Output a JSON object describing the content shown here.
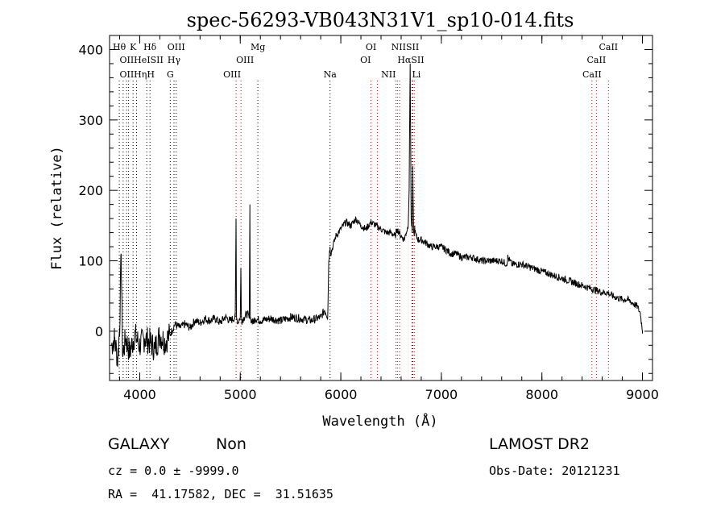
{
  "chart_data": {
    "type": "line",
    "title": "spec-56293-VB043N31V1_sp10-014.fits",
    "xlabel": "Wavelength (Å)",
    "ylabel": "Flux (relative)",
    "xlim": [
      3700,
      9100
    ],
    "ylim": [
      -70,
      420
    ],
    "xticks": [
      4000,
      5000,
      6000,
      7000,
      8000,
      9000
    ],
    "yticks": [
      0,
      100,
      200,
      300,
      400
    ],
    "grid": false,
    "line_color": "#000000",
    "marker_color": "#cc0000",
    "series": [
      {
        "x": [
          3720,
          3750,
          3780,
          3800,
          3815,
          3830,
          3860,
          3900,
          3950,
          4000,
          4050,
          4100,
          4150,
          4200,
          4250,
          4300,
          4350,
          4400,
          4450,
          4500,
          4550,
          4600,
          4650,
          4700,
          4750,
          4800,
          4850,
          4900,
          4950,
          4958,
          4962,
          4966,
          4975,
          5000,
          5006,
          5010,
          5015,
          5040,
          5070,
          5090,
          5096,
          5100,
          5120,
          5150,
          5200,
          5300,
          5400,
          5500,
          5600,
          5700,
          5800,
          5840,
          5870,
          5880,
          5893,
          5900,
          5950,
          6000,
          6050,
          6100,
          6150,
          6200,
          6250,
          6300,
          6350,
          6400,
          6450,
          6500,
          6540,
          6560,
          6580,
          6600,
          6630,
          6650,
          6670,
          6680,
          6690,
          6700,
          6710,
          6716,
          6720,
          6725,
          6731,
          6736,
          6740,
          6750,
          6770,
          6800,
          6850,
          6900,
          6950,
          7000,
          7050,
          7100,
          7150,
          7200,
          7300,
          7400,
          7500,
          7600,
          7650,
          7660,
          7700,
          7800,
          7900,
          8000,
          8100,
          8200,
          8300,
          8400,
          8500,
          8600,
          8650,
          8700,
          8800,
          8850,
          8900,
          8950,
          8980,
          9000
        ],
        "y": [
          -20,
          -10,
          -40,
          5,
          110,
          -35,
          -10,
          -30,
          -5,
          -20,
          -10,
          -15,
          -25,
          -5,
          -15,
          -5,
          10,
          5,
          10,
          5,
          15,
          12,
          18,
          15,
          18,
          12,
          20,
          15,
          20,
          160,
          25,
          18,
          12,
          20,
          90,
          30,
          15,
          20,
          25,
          18,
          180,
          20,
          12,
          18,
          15,
          18,
          15,
          20,
          18,
          15,
          20,
          30,
          20,
          100,
          120,
          110,
          135,
          145,
          155,
          150,
          160,
          150,
          145,
          155,
          150,
          145,
          140,
          140,
          135,
          145,
          140,
          135,
          130,
          140,
          150,
          200,
          380,
          160,
          140,
          230,
          180,
          140,
          135,
          150,
          140,
          135,
          130,
          130,
          125,
          120,
          120,
          120,
          115,
          110,
          110,
          105,
          105,
          100,
          100,
          100,
          95,
          105,
          95,
          95,
          90,
          85,
          80,
          75,
          70,
          65,
          60,
          55,
          55,
          50,
          45,
          45,
          40,
          35,
          25,
          0
        ]
      }
    ],
    "line_markers": [
      {
        "wl": 3797,
        "color": "black"
      },
      {
        "wl": 3835,
        "color": "black"
      },
      {
        "wl": 3869,
        "color": "black"
      },
      {
        "wl": 3889,
        "color": "black"
      },
      {
        "wl": 3934,
        "color": "black"
      },
      {
        "wl": 3968,
        "color": "black"
      },
      {
        "wl": 4070,
        "color": "black"
      },
      {
        "wl": 4102,
        "color": "black"
      },
      {
        "wl": 4304,
        "color": "black"
      },
      {
        "wl": 4341,
        "color": "black"
      },
      {
        "wl": 4363,
        "color": "black"
      },
      {
        "wl": 4959,
        "color": "red"
      },
      {
        "wl": 5007,
        "color": "red"
      },
      {
        "wl": 5175,
        "color": "black"
      },
      {
        "wl": 5893,
        "color": "black"
      },
      {
        "wl": 6300,
        "color": "red"
      },
      {
        "wl": 6364,
        "color": "red"
      },
      {
        "wl": 6548,
        "color": "red"
      },
      {
        "wl": 6563,
        "color": "red"
      },
      {
        "wl": 6584,
        "color": "red"
      },
      {
        "wl": 6708,
        "color": "black"
      },
      {
        "wl": 6716,
        "color": "red"
      },
      {
        "wl": 6731,
        "color": "red"
      },
      {
        "wl": 8498,
        "color": "red"
      },
      {
        "wl": 8542,
        "color": "red"
      },
      {
        "wl": 8662,
        "color": "red"
      }
    ],
    "line_labels": [
      {
        "text": "Hθ",
        "wl": 3797,
        "row": 0,
        "align": "middle"
      },
      {
        "text": "K",
        "wl": 3934,
        "row": 0,
        "align": "middle"
      },
      {
        "text": "Hδ",
        "wl": 4102,
        "row": 0,
        "align": "middle"
      },
      {
        "text": "Mg",
        "wl": 5175,
        "row": 0,
        "align": "middle"
      },
      {
        "text": "OI",
        "wl": 6300,
        "row": 0,
        "align": "middle"
      },
      {
        "text": "NIISII",
        "wl": 6640,
        "row": 0,
        "align": "middle"
      },
      {
        "text": "CaII",
        "wl": 8662,
        "row": 0,
        "align": "middle"
      },
      {
        "text": "OIII",
        "wl": 4363,
        "row": 0,
        "align": "middle"
      },
      {
        "text": "OIIHeISII",
        "wl": 3800,
        "row": 1,
        "align": "start"
      },
      {
        "text": "Hγ",
        "wl": 4341,
        "row": 1,
        "align": "middle"
      },
      {
        "text": "OIII",
        "wl": 4959,
        "row": 1,
        "align": "start"
      },
      {
        "text": "OI",
        "wl": 6300,
        "row": 1,
        "align": "end"
      },
      {
        "text": "HαSII",
        "wl": 6563,
        "row": 1,
        "align": "start"
      },
      {
        "text": "CaII",
        "wl": 8542,
        "row": 1,
        "align": "middle"
      },
      {
        "text": "OIIHηH",
        "wl": 3800,
        "row": 2,
        "align": "start"
      },
      {
        "text": "G",
        "wl": 4304,
        "row": 2,
        "align": "middle"
      },
      {
        "text": "OIII",
        "wl": 5007,
        "row": 2,
        "align": "end"
      },
      {
        "text": "Na",
        "wl": 5893,
        "row": 2,
        "align": "middle"
      },
      {
        "text": "NII",
        "wl": 6548,
        "row": 2,
        "align": "end"
      },
      {
        "text": "Li",
        "wl": 6708,
        "row": 2,
        "align": "start"
      },
      {
        "text": "CaII",
        "wl": 8498,
        "row": 2,
        "align": "middle"
      }
    ]
  },
  "info": {
    "object_class": "GALAXY",
    "subclass": "Non",
    "survey": "LAMOST DR2",
    "redshift": "cz = 0.0 ± -9999.0",
    "obs_date": "Obs-Date: 20121231",
    "coords": "RA =  41.17582, DEC =  31.51635"
  }
}
